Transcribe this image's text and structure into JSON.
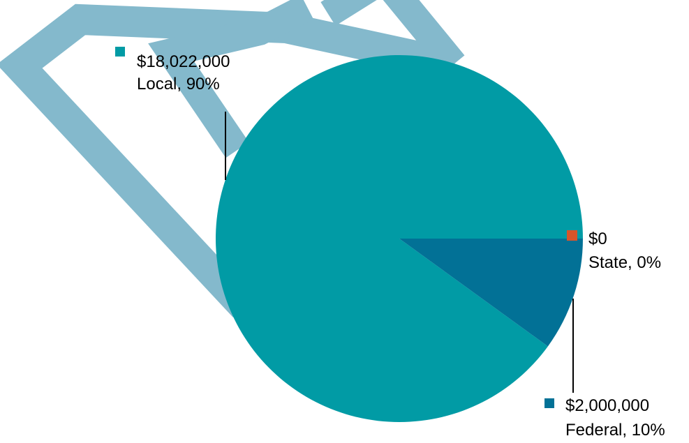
{
  "colors": {
    "watermark": "#84b9cc",
    "local": "#019ba5",
    "state": "#d7552a",
    "federal": "#027196",
    "leader": "#000000"
  },
  "chart_data": {
    "type": "pie",
    "slices": [
      {
        "key": "local",
        "category": "Local",
        "value": 18022000,
        "percent": 90,
        "value_label": "$18,022,000",
        "category_label": "Local, 90%",
        "color": "#019ba5"
      },
      {
        "key": "state",
        "category": "State",
        "value": 0,
        "percent": 0,
        "value_label": "$0",
        "category_label": "State, 0%",
        "color": "#d7552a"
      },
      {
        "key": "federal",
        "category": "Federal",
        "value": 2000000,
        "percent": 10,
        "value_label": "$2,000,000",
        "category_label": "Federal, 10%",
        "color": "#027196"
      }
    ],
    "legend": "none",
    "labels": "outside-with-leaders"
  }
}
